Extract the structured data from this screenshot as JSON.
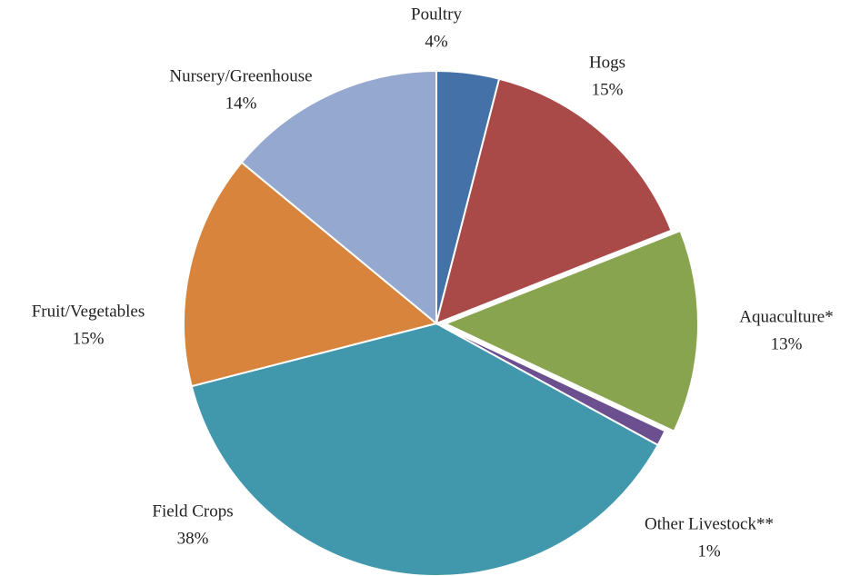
{
  "chart_data": {
    "type": "pie",
    "categories": [
      "Poultry",
      "Hogs",
      "Aquaculture*",
      "Other Livestock**",
      "Field Crops",
      "Fruit/Vegetables",
      "Nursery/Greenhouse"
    ],
    "values": [
      4,
      15,
      13,
      1,
      38,
      15,
      14
    ],
    "value_labels": [
      "4%",
      "15%",
      "13%",
      "1%",
      "38%",
      "15%",
      "14%"
    ],
    "colors": [
      "#4472a8",
      "#a94948",
      "#88a44f",
      "#6b4f8e",
      "#4198ac",
      "#d9843c",
      "#95a9d0"
    ],
    "explode": [
      false,
      false,
      true,
      false,
      false,
      false,
      false
    ]
  }
}
